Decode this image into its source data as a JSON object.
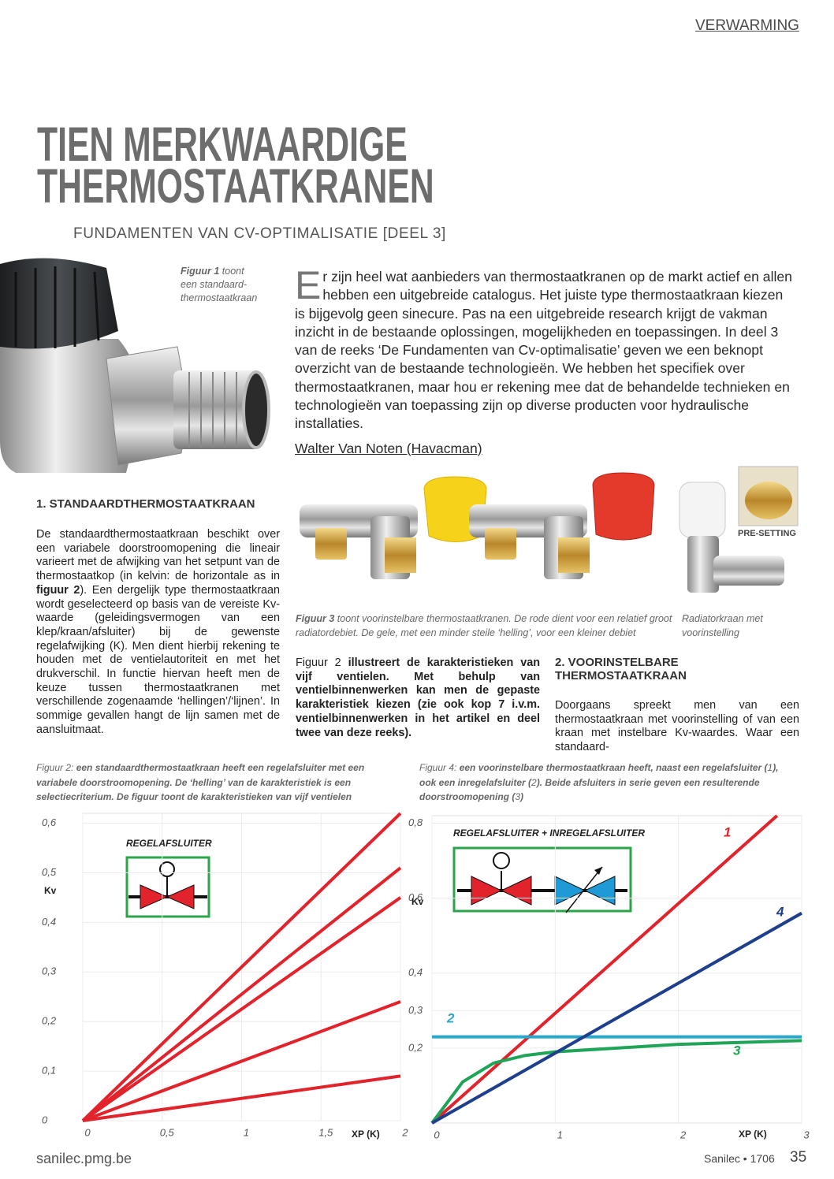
{
  "header": {
    "section": "VERWARMING"
  },
  "title": {
    "lines": [
      "TIEN MERKWAARDIGE",
      "THERMOSTAATKRANEN"
    ],
    "subtitle": "FUNDAMENTEN VAN CV-OPTIMALISATIE [DEEL 3]"
  },
  "figure_1": {
    "label": "Figuur 1",
    "text": "toont een standaard-thermostaatkraan"
  },
  "intro": {
    "drop_cap": "E",
    "text": "r zijn heel wat aanbieders van thermostaatkranen op de markt actief en allen hebben een uitgebreide catalogus. Het juiste type thermostaatkraan kiezen is bijgevolg geen sinecure. Pas na een uitgebreide research krijgt de vakman inzicht in de bestaande oplossingen, mogelijkheden en toepassingen. In deel 3 van de reeks ‘De Fundamenten van Cv-optimalisatie’ geven we een beknopt overzicht van de bestaande technologieën. We hebben het specifiek over thermostaatkranen, maar hou er rekening mee dat de behandelde technieken en technologieën van toepassing zijn op diverse producten voor hydraulische installaties.",
    "author": "Walter Van Noten (Havacman)"
  },
  "section_1": {
    "heading": "1. STANDAARDTHERMOSTAATKRAAN",
    "body": [
      "De standaardthermostaatkraan beschikt over een variabele doorstroomopening die lineair varieert met de afwijking van het setpunt van de thermostaatkop (in kelvin: de horizontale as in ",
      "figuur 2",
      "). Een dergelijk type thermostaatkraan wordt geselecteerd op basis van de vereiste Kv-waarde (geleidingsvermogen van een klep/kraan/afsluiter) bij de gewenste regelafwijking (K). Men dient hierbij rekening te houden met de ventielautoriteit en met het drukverschil. In functie hiervan heeft men de keuze tussen thermostaatkranen met verschillende zogenaamde ‘hellingen’/‘lijnen’. In sommige gevallen hangt de lijn samen met de aansluitmaat."
    ]
  },
  "figure_3": {
    "label": "Figuur 3",
    "text": "toont voorinstelbare thermostaatkranen. De rode dient voor een relatief groot radiatordebiet. De gele, met een minder steile ‘helling’, voor een kleiner debiet"
  },
  "figure_radiator": {
    "text": "Radiatorkraan met voorinstelling",
    "badge": "PRE-SETTING"
  },
  "column_2": {
    "body": [
      "Figuur 2",
      " illustreert de karakteristieken van vijf ventielen. Met behulp van ventielbinnenwerken kan men de gepaste karakteristiek kiezen (zie ook kop 7 i.v.m. ventielbinnenwerken in het artikel en deel twee van deze reeks)."
    ]
  },
  "section_2": {
    "heading": "2. VOORINSTELBARE THERMOSTAATKRAAN",
    "body": [
      "Doorgaans spreekt men van een thermostaatkraan met voorinstelling of van een kraan met instelbare Kv-waardes. Waar een standaard-"
    ]
  },
  "figure_2": {
    "caption": [
      "Figuur 2:",
      " een standaardthermostaatkraan heeft een regelafsluiter met een variabele doorstroomopening. De ‘helling’ van de karakteristiek is een selectiecriterium. De figuur toont de karakteristieken van vijf ventielen"
    ]
  },
  "figure_4": {
    "caption": [
      "Figuur 4:",
      " een voorinstelbare thermostaatkraan heeft, naast een regelafsluiter (",
      "1",
      "), ook een inregelafsluiter (",
      "2",
      "). Beide afsluiters in serie geven een resulterende doorstroomopening (",
      "3",
      ")"
    ]
  },
  "chart_data": [
    {
      "type": "line",
      "inset_label": "REGELAFSLUITER",
      "y_label": "Kv",
      "x_label": "XP (K)",
      "xlim": [
        0,
        2
      ],
      "ylim": [
        0,
        0.62
      ],
      "xticks": [
        0,
        {
          "value": 0.5,
          "label": "0,5"
        },
        1,
        {
          "value": 1.5,
          "label": "1,5"
        },
        2
      ],
      "yticks": [
        0,
        {
          "value": 0.1,
          "label": "0,1"
        },
        {
          "value": 0.2,
          "label": "0,2"
        },
        {
          "value": 0.3,
          "label": "0,3"
        },
        {
          "value": 0.4,
          "label": "0,4"
        },
        {
          "value": 0.5,
          "label": "0,5"
        },
        {
          "value": 0.6,
          "label": "0,6"
        }
      ],
      "grid": true,
      "series": [
        {
          "color": "#e3232c",
          "x": [
            0,
            2
          ],
          "values": [
            0,
            0.62
          ]
        },
        {
          "color": "#e3232c",
          "x": [
            0,
            2
          ],
          "values": [
            0,
            0.51
          ]
        },
        {
          "color": "#e3232c",
          "x": [
            0,
            2
          ],
          "values": [
            0,
            0.45
          ]
        },
        {
          "color": "#e3232c",
          "x": [
            0,
            2
          ],
          "values": [
            0,
            0.24
          ]
        },
        {
          "color": "#e3232c",
          "x": [
            0,
            2
          ],
          "values": [
            0,
            0.09
          ]
        }
      ]
    },
    {
      "type": "line",
      "inset_label": "REGELAFSLUITER + INREGELAFSLUITER",
      "y_label": "Kv",
      "x_label": "XP (K)",
      "xlim": [
        0,
        3
      ],
      "ylim": [
        0,
        0.82
      ],
      "xticks": [
        0,
        1,
        2,
        3
      ],
      "yticks": [
        {
          "value": 0.2,
          "label": "0,2"
        },
        {
          "value": 0.3,
          "label": "0,3"
        },
        {
          "value": 0.4,
          "label": "0,4"
        },
        {
          "value": 0.6,
          "label": "0,6"
        },
        {
          "value": 0.8,
          "label": "0,8"
        }
      ],
      "grid": true,
      "series": [
        {
          "name": "1",
          "color": "#e3232c",
          "x": [
            0,
            2.8
          ],
          "values": [
            0,
            0.82
          ]
        },
        {
          "name": "2",
          "color": "#2aa7c9",
          "x": [
            0,
            3
          ],
          "values": [
            0.23,
            0.23
          ]
        },
        {
          "name": "3",
          "color": "#1fa557",
          "x": [
            0,
            0.25,
            0.5,
            0.75,
            1,
            1.5,
            2,
            2.5,
            3
          ],
          "values": [
            0,
            0.11,
            0.16,
            0.18,
            0.19,
            0.2,
            0.21,
            0.215,
            0.22
          ]
        },
        {
          "name": "4",
          "color": "#1d3f8c",
          "x": [
            0,
            3
          ],
          "values": [
            0,
            0.56
          ]
        }
      ]
    }
  ],
  "footer": {
    "site": "sanilec.pmg.be",
    "issue": "Sanilec • 1706",
    "page": "35"
  }
}
